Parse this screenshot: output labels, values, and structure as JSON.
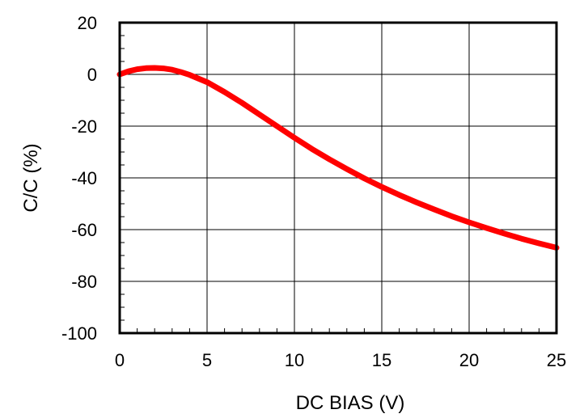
{
  "chart_data": {
    "type": "line",
    "xlabel": "DC BIAS (V)",
    "ylabel": "C/C (%)",
    "xlim": [
      0,
      25
    ],
    "ylim": [
      -100,
      20
    ],
    "xticks": [
      "0",
      "5",
      "10",
      "15",
      "20",
      "25"
    ],
    "yticks": [
      "20",
      "0",
      "-20",
      "-40",
      "-60",
      "-80",
      "-100"
    ],
    "grid": true,
    "line_color": "#ff0000",
    "series": [
      {
        "x": [
          0,
          0.5,
          1,
          1.5,
          2,
          2.5,
          3,
          3.5,
          4,
          5,
          6,
          7,
          8,
          9,
          10,
          11,
          12,
          13,
          14,
          15,
          16,
          17,
          18,
          19,
          20,
          21,
          22,
          23,
          24,
          25
        ],
        "y": [
          0,
          1.2,
          2,
          2.4,
          2.5,
          2.3,
          1.8,
          0.9,
          -0.2,
          -3,
          -6.8,
          -11,
          -15.5,
          -20,
          -24.5,
          -28.8,
          -32.8,
          -36.6,
          -40.2,
          -43.5,
          -46.6,
          -49.5,
          -52.2,
          -54.8,
          -57.2,
          -59.4,
          -61.5,
          -63.5,
          -65.3,
          -67
        ]
      }
    ]
  }
}
